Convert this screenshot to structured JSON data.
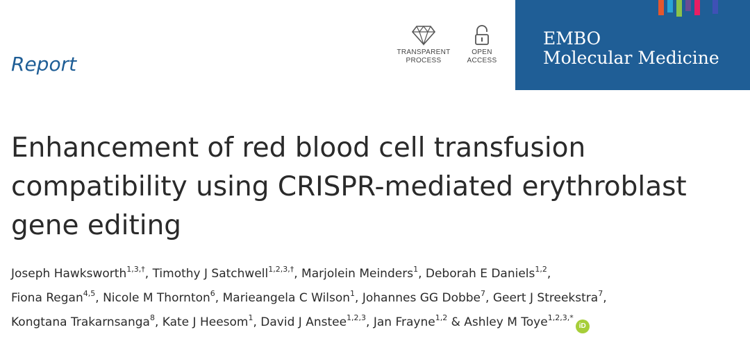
{
  "article_type": "Report",
  "badges": [
    {
      "icon": "diamond-icon",
      "line1": "TRANSPARENT",
      "line2": "PROCESS"
    },
    {
      "icon": "open-lock-icon",
      "line1": "OPEN",
      "line2": "ACCESS"
    }
  ],
  "journal": {
    "line1": "EMBO",
    "line2": "Molecular Medicine",
    "background": "#1f5e96",
    "stripe_colors": [
      "#e4572e",
      "#29a3d6",
      "#8bc34a",
      "#6a4c93",
      "#e91e63",
      "#1f5e96",
      "#3f51b5"
    ]
  },
  "title": {
    "line1": "Enhancement of red blood cell transfusion",
    "line2": "compatibility using CRISPR-mediated erythroblast",
    "line3": "gene editing"
  },
  "authors": [
    {
      "name": "Joseph Hawksworth",
      "aff": "1,3,†",
      "sep": ", "
    },
    {
      "name": "Timothy J Satchwell",
      "aff": "1,2,3,†",
      "sep": ", "
    },
    {
      "name": "Marjolein Meinders",
      "aff": "1",
      "sep": ", "
    },
    {
      "name": "Deborah E Daniels",
      "aff": "1,2",
      "sep": ","
    },
    {
      "name": "Fiona Regan",
      "aff": "4,5",
      "sep": ", "
    },
    {
      "name": "Nicole M Thornton",
      "aff": "6",
      "sep": ", "
    },
    {
      "name": "Marieangela C Wilson",
      "aff": "1",
      "sep": ", "
    },
    {
      "name": "Johannes GG Dobbe",
      "aff": "7",
      "sep": ", "
    },
    {
      "name": "Geert J Streekstra",
      "aff": "7",
      "sep": ","
    },
    {
      "name": "Kongtana Trakarnsanga",
      "aff": "8",
      "sep": ", "
    },
    {
      "name": "Kate J Heesom",
      "aff": "1",
      "sep": ", "
    },
    {
      "name": "David J Anstee",
      "aff": "1,2,3",
      "sep": ", "
    },
    {
      "name": "Jan Frayne",
      "aff": "1,2",
      "sep": " & "
    },
    {
      "name": "Ashley M Toye",
      "aff": "1,2,3,*",
      "sep": ""
    }
  ],
  "orcid_label": "iD",
  "colors": {
    "accent": "#1f5e96",
    "orcid": "#a6ce39"
  }
}
